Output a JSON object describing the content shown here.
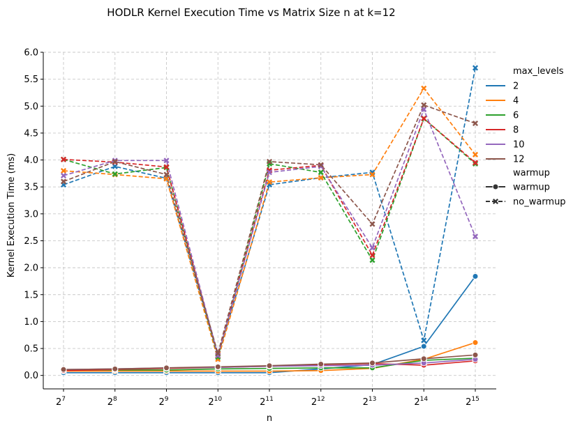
{
  "chart_data": {
    "type": "line",
    "title": "HODLR Kernel Execution Time vs Matrix Size n at k=12",
    "xlabel": "n",
    "ylabel": "Kernel Execution Time (ms)",
    "x_tick_base": "2",
    "x_tick_exponents": [
      "7",
      "8",
      "9",
      "10",
      "11",
      "12",
      "13",
      "14",
      "15"
    ],
    "x": [
      128,
      256,
      512,
      1024,
      2048,
      4096,
      8192,
      16384,
      32768
    ],
    "x_scale": "log2",
    "ylim": [
      -0.25,
      6.0
    ],
    "yticks": [
      "0.0",
      "0.5",
      "1.0",
      "1.5",
      "2.0",
      "2.5",
      "3.0",
      "3.5",
      "4.0",
      "4.5",
      "5.0",
      "5.5",
      "6.0"
    ],
    "grid": true,
    "legend": {
      "placement": "right-outside",
      "hue_title": "max_levels",
      "style_title": "warmup",
      "hue_entries": [
        "2",
        "4",
        "6",
        "8",
        "10",
        "12"
      ],
      "style_entries": [
        "warmup",
        "no_warmup"
      ]
    },
    "colors": {
      "2": "#1f77b4",
      "4": "#ff7f0e",
      "6": "#2ca02c",
      "8": "#d62728",
      "10": "#9467bd",
      "12": "#8c564b"
    },
    "series": [
      {
        "max_levels": "2",
        "warmup": "warmup",
        "values": [
          0.05,
          0.05,
          0.05,
          0.05,
          0.05,
          0.12,
          0.2,
          0.54,
          1.84
        ]
      },
      {
        "max_levels": "4",
        "warmup": "warmup",
        "values": [
          0.08,
          0.08,
          0.08,
          0.08,
          0.08,
          0.09,
          0.13,
          0.3,
          0.61
        ]
      },
      {
        "max_levels": "6",
        "warmup": "warmup",
        "values": [
          0.1,
          0.1,
          0.1,
          0.12,
          0.13,
          0.14,
          0.14,
          0.28,
          0.32
        ]
      },
      {
        "max_levels": "8",
        "warmup": "warmup",
        "values": [
          0.09,
          0.11,
          0.13,
          0.15,
          0.17,
          0.2,
          0.22,
          0.19,
          0.27
        ]
      },
      {
        "max_levels": "10",
        "warmup": "warmup",
        "values": [
          0.11,
          0.12,
          0.14,
          0.15,
          0.17,
          0.18,
          0.19,
          0.23,
          0.3
        ]
      },
      {
        "max_levels": "12",
        "warmup": "warmup",
        "values": [
          0.11,
          0.12,
          0.14,
          0.16,
          0.18,
          0.21,
          0.23,
          0.31,
          0.38
        ]
      },
      {
        "max_levels": "2",
        "warmup": "no_warmup",
        "values": [
          3.54,
          3.88,
          3.66,
          0.37,
          3.54,
          3.67,
          3.77,
          0.65,
          5.71
        ]
      },
      {
        "max_levels": "4",
        "warmup": "no_warmup",
        "values": [
          3.8,
          3.73,
          3.65,
          0.3,
          3.59,
          3.67,
          3.73,
          5.33,
          4.1
        ]
      },
      {
        "max_levels": "6",
        "warmup": "no_warmup",
        "values": [
          4.01,
          3.74,
          3.86,
          0.34,
          3.93,
          3.77,
          2.14,
          4.77,
          3.93
        ]
      },
      {
        "max_levels": "8",
        "warmup": "no_warmup",
        "values": [
          4.01,
          3.96,
          3.87,
          0.37,
          3.81,
          3.9,
          2.23,
          4.77,
          3.95
        ]
      },
      {
        "max_levels": "10",
        "warmup": "no_warmup",
        "values": [
          3.71,
          3.99,
          3.99,
          0.37,
          3.77,
          3.88,
          2.37,
          4.94,
          2.58
        ]
      },
      {
        "max_levels": "12",
        "warmup": "no_warmup",
        "values": [
          3.6,
          3.97,
          3.73,
          0.41,
          3.97,
          3.91,
          2.81,
          5.02,
          4.68
        ]
      }
    ]
  }
}
